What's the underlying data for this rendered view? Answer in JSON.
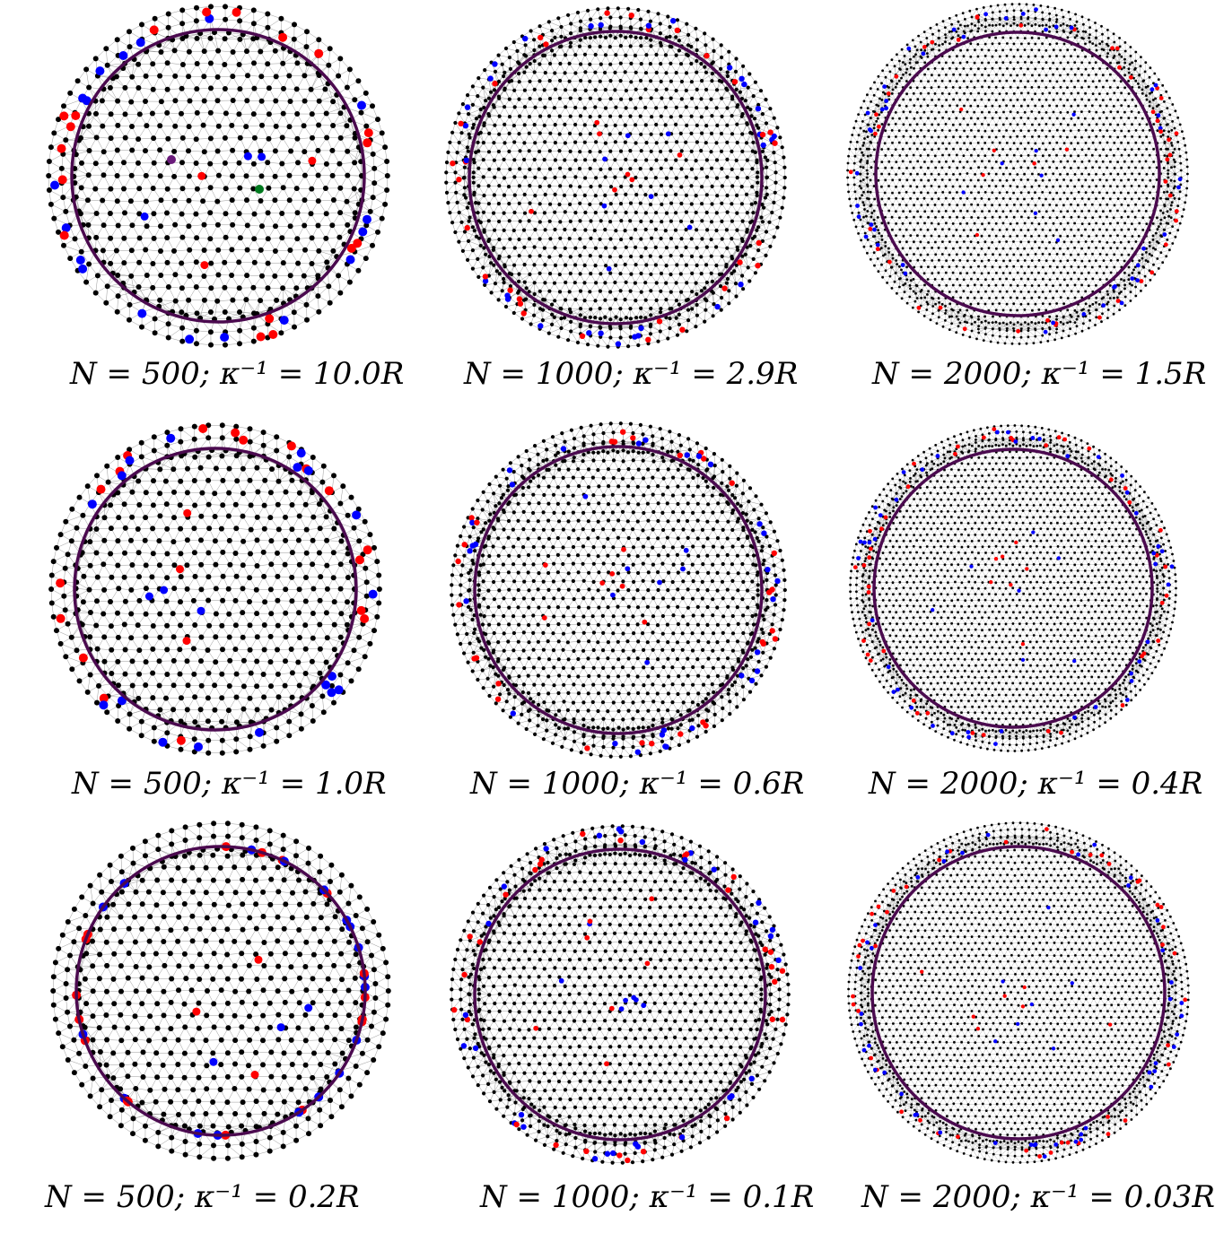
{
  "figure": {
    "panels": [
      {
        "n": 500,
        "kappa": "10.0",
        "caption": "N = 500; κ⁻¹ = 10.0R"
      },
      {
        "n": 1000,
        "kappa": "2.9",
        "caption": "N = 1000; κ⁻¹ = 2.9R"
      },
      {
        "n": 2000,
        "kappa": "1.5",
        "caption": "N = 2000; κ⁻¹ = 1.5R"
      },
      {
        "n": 500,
        "kappa": "1.0",
        "caption": "N = 500; κ⁻¹ = 1.0R"
      },
      {
        "n": 1000,
        "kappa": "0.6",
        "caption": "N = 1000; κ⁻¹ = 0.6R"
      },
      {
        "n": 2000,
        "kappa": "0.4",
        "caption": "N = 2000; κ⁻¹ = 0.4R"
      },
      {
        "n": 500,
        "kappa": "0.2",
        "caption": "N = 500; κ⁻¹ = 0.2R"
      },
      {
        "n": 1000,
        "kappa": "0.1",
        "caption": "N = 1000; κ⁻¹ = 0.1R"
      },
      {
        "n": 2000,
        "kappa": "0.03",
        "caption": "N = 2000; κ⁻¹ = 0.03R"
      }
    ]
  },
  "colors": {
    "particle": "#000000",
    "defect_plus": "#ff0000",
    "defect_minus": "#0000ff",
    "defect_other_a": "#6a1b7a",
    "defect_other_b": "#007a1f",
    "boundary_ring": "#4b0a4f",
    "mesh_line": "#9a9a9a"
  }
}
